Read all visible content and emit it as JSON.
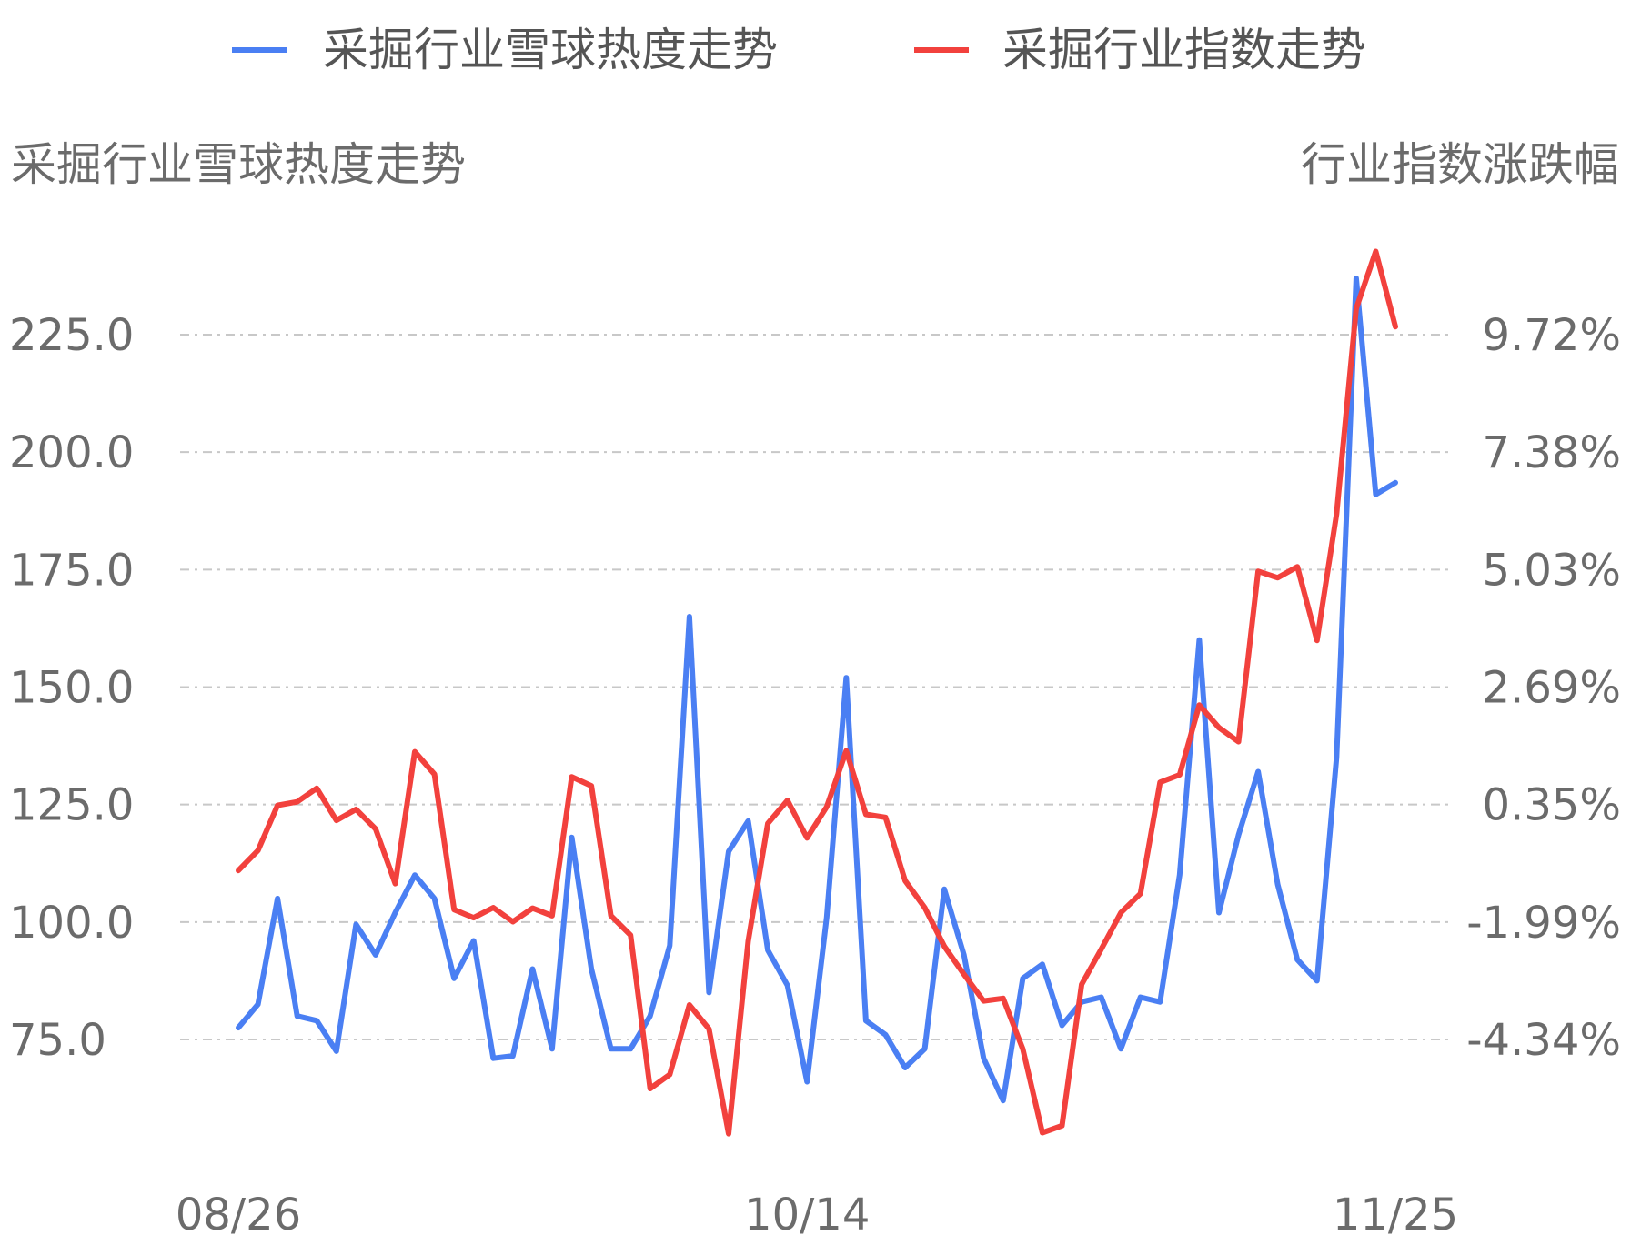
{
  "chart_data": {
    "type": "line",
    "legend": {
      "position": "top-center"
    },
    "y_left": {
      "title": "采掘行业雪球热度走势",
      "ticks": [
        "225.0",
        "200.0",
        "175.0",
        "150.0",
        "125.0",
        "100.0",
        "75.0"
      ],
      "range": [
        75,
        225
      ]
    },
    "y_right": {
      "title": "行业指数涨跌幅",
      "ticks": [
        "9.72%",
        "7.38%",
        "5.03%",
        "2.69%",
        "0.35%",
        "-1.99%",
        "-4.34%"
      ],
      "range": [
        -4.34,
        9.72
      ]
    },
    "x_ticks": [
      {
        "label": "08/26",
        "index": 0
      },
      {
        "label": "10/14",
        "index": 29
      },
      {
        "label": "11/25",
        "index": 59
      }
    ],
    "grid": "dashed-horizontal",
    "series": [
      {
        "name": "采掘行业雪球热度走势",
        "color": "#4a7ff3",
        "axis": "left",
        "values": [
          77.5,
          82.5,
          105,
          80,
          79,
          72.5,
          99.5,
          93,
          102,
          110,
          105,
          88,
          96,
          71,
          71.5,
          90,
          73,
          118,
          90,
          73,
          73,
          80,
          95,
          165,
          85,
          115,
          121.5,
          94,
          86.5,
          66,
          101,
          152,
          79,
          76,
          69,
          73,
          107,
          93,
          71,
          62,
          88,
          91,
          78,
          83,
          84,
          73,
          84,
          83,
          110,
          160,
          102,
          118.5,
          132,
          108,
          92,
          87.5,
          135,
          237,
          191,
          193.5
        ]
      },
      {
        "name": "采掘行业指数走势",
        "color": "#f2413d",
        "axis": "right",
        "values": [
          -0.97,
          -0.57,
          0.33,
          0.4,
          0.67,
          0.03,
          0.25,
          -0.14,
          -1.23,
          1.4,
          0.95,
          -1.75,
          -1.91,
          -1.71,
          -1.99,
          -1.72,
          -1.87,
          0.9,
          0.72,
          -1.87,
          -2.26,
          -5.32,
          -5.04,
          -3.65,
          -4.13,
          -6.22,
          -2.38,
          -0.03,
          0.43,
          -0.32,
          0.3,
          1.42,
          0.15,
          0.09,
          -1.17,
          -1.71,
          -2.48,
          -3.04,
          -3.57,
          -3.52,
          -4.53,
          -6.2,
          -6.06,
          -3.24,
          -2.54,
          -1.81,
          -1.43,
          0.79,
          0.94,
          2.33,
          1.88,
          1.6,
          5.0,
          4.87,
          5.09,
          3.62,
          6.14,
          10.24,
          11.38,
          9.88
        ]
      }
    ]
  }
}
